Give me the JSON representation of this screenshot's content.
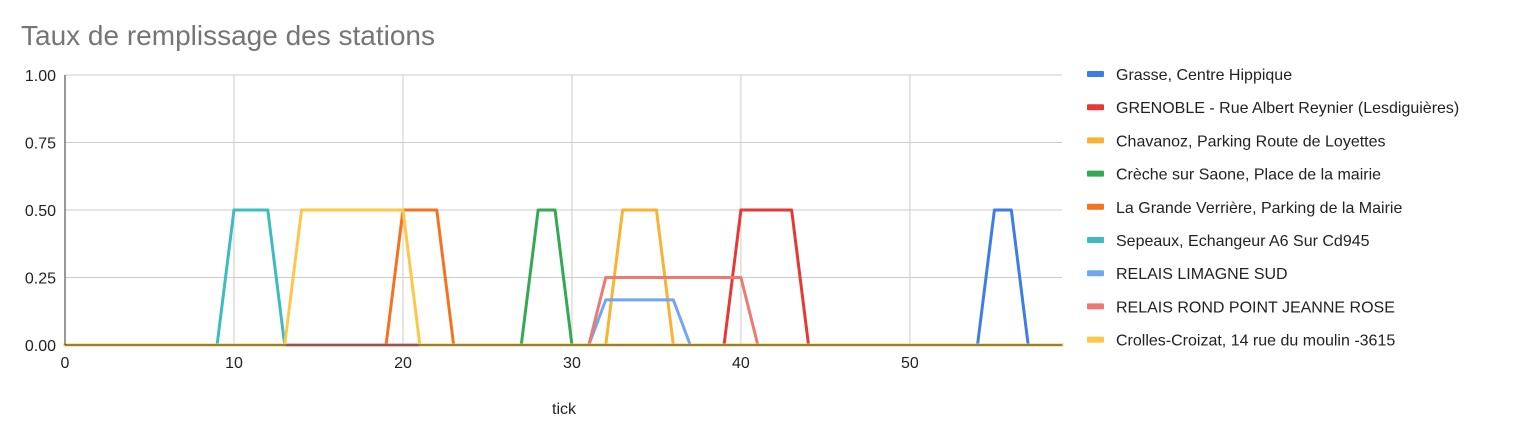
{
  "chart_data": {
    "type": "line",
    "title": "Taux de remplissage des stations",
    "xlabel": "tick",
    "ylabel": "",
    "xlim": [
      0,
      59
    ],
    "ylim": [
      0,
      1
    ],
    "x_ticks": [
      0,
      10,
      20,
      30,
      40,
      50
    ],
    "y_ticks": [
      "0.00",
      "0.25",
      "0.50",
      "0.75",
      "1.00"
    ],
    "grid": true,
    "legend_position": "right",
    "series": [
      {
        "name": "Grasse, Centre Hippique",
        "color": "#3d7ee6",
        "points": [
          [
            0,
            0
          ],
          [
            54,
            0
          ],
          [
            55,
            0.5
          ],
          [
            56,
            0.5
          ],
          [
            57,
            0
          ],
          [
            59,
            0
          ]
        ]
      },
      {
        "name": "GRENOBLE - Rue Albert Reynier (Lesdiguières)",
        "color": "#e53935",
        "points": [
          [
            0,
            0
          ],
          [
            39,
            0
          ],
          [
            40,
            0.5
          ],
          [
            43,
            0.5
          ],
          [
            44,
            0
          ],
          [
            59,
            0
          ]
        ]
      },
      {
        "name": "Chavanoz, Parking Route de Loyettes",
        "color": "#f9b233",
        "points": [
          [
            0,
            0
          ],
          [
            32,
            0
          ],
          [
            33,
            0.5
          ],
          [
            35,
            0.5
          ],
          [
            36,
            0
          ],
          [
            59,
            0
          ]
        ]
      },
      {
        "name": "Crèche sur Saone, Place de la mairie",
        "color": "#34a853",
        "points": [
          [
            0,
            0
          ],
          [
            27,
            0
          ],
          [
            28,
            0.5
          ],
          [
            29,
            0.5
          ],
          [
            30,
            0
          ],
          [
            59,
            0
          ]
        ]
      },
      {
        "name": "La Grande Verrière, Parking de la Mairie",
        "color": "#f4731f",
        "points": [
          [
            0,
            0
          ],
          [
            19,
            0
          ],
          [
            20,
            0.5
          ],
          [
            22,
            0.5
          ],
          [
            23,
            0
          ],
          [
            59,
            0
          ]
        ]
      },
      {
        "name": "Sepeaux, Echangeur A6 Sur Cd945",
        "color": "#3cbcbf",
        "points": [
          [
            0,
            0
          ],
          [
            9,
            0
          ],
          [
            10,
            0.5
          ],
          [
            12,
            0.5
          ],
          [
            13,
            0
          ],
          [
            59,
            0
          ]
        ]
      },
      {
        "name": "RELAIS LIMAGNE SUD",
        "color": "#71a7f0",
        "points": [
          [
            0,
            0
          ],
          [
            31,
            0
          ],
          [
            32,
            0.167
          ],
          [
            36,
            0.167
          ],
          [
            37,
            0
          ],
          [
            59,
            0
          ]
        ]
      },
      {
        "name": "RELAIS  ROND POINT JEANNE ROSE",
        "color": "#ec7a72",
        "points": [
          [
            0,
            0
          ],
          [
            31,
            0
          ],
          [
            32,
            0.25
          ],
          [
            40,
            0.25
          ],
          [
            41,
            0
          ],
          [
            59,
            0
          ]
        ]
      },
      {
        "name": "Crolles-Croizat, 14 rue du moulin -3615",
        "color": "#fdc84a",
        "points": [
          [
            0,
            0
          ],
          [
            13,
            0
          ],
          [
            14,
            0.5
          ],
          [
            20,
            0.5
          ],
          [
            21,
            0
          ],
          [
            59,
            0
          ]
        ]
      }
    ]
  }
}
